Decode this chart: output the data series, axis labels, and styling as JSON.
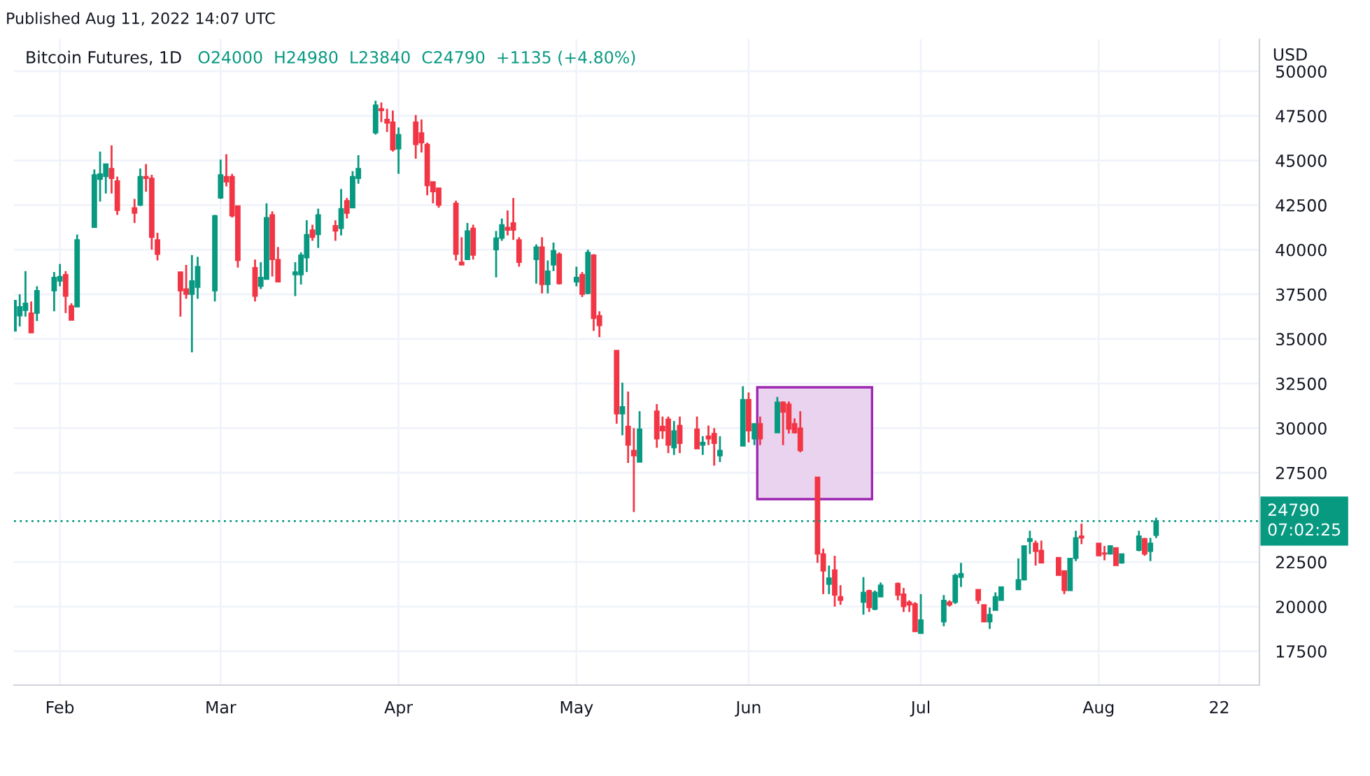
{
  "chart_data": {
    "type": "candlestick",
    "title": "Bitcoin Futures, 1D",
    "subtitle": "O24000  H24980  L23840  C24790  +1135 (+4.80%)",
    "ylabel": "USD",
    "annotations": [
      "07:02:25",
      "Published Aug 11, 2022 14:07 UTC"
    ],
    "x": [
      "2022-01-24",
      "2022-01-25",
      "2022-01-26",
      "2022-01-27",
      "2022-01-28",
      "2022-01-31",
      "2022-02-01",
      "2022-02-02",
      "2022-02-03",
      "2022-02-04",
      "2022-02-07",
      "2022-02-08",
      "2022-02-09",
      "2022-02-10",
      "2022-02-11",
      "2022-02-14",
      "2022-02-15",
      "2022-02-16",
      "2022-02-17",
      "2022-02-18",
      "2022-02-22",
      "2022-02-23",
      "2022-02-24",
      "2022-02-25",
      "2022-02-28",
      "2022-03-01",
      "2022-03-02",
      "2022-03-03",
      "2022-03-04",
      "2022-03-07",
      "2022-03-08",
      "2022-03-09",
      "2022-03-10",
      "2022-03-11",
      "2022-03-14",
      "2022-03-15",
      "2022-03-16",
      "2022-03-17",
      "2022-03-18",
      "2022-03-21",
      "2022-03-22",
      "2022-03-23",
      "2022-03-24",
      "2022-03-25",
      "2022-03-28",
      "2022-03-29",
      "2022-03-30",
      "2022-03-31",
      "2022-04-01",
      "2022-04-04",
      "2022-04-05",
      "2022-04-06",
      "2022-04-07",
      "2022-04-08",
      "2022-04-11",
      "2022-04-12",
      "2022-04-13",
      "2022-04-14",
      "2022-04-18",
      "2022-04-19",
      "2022-04-20",
      "2022-04-21",
      "2022-04-22",
      "2022-04-25",
      "2022-04-26",
      "2022-04-27",
      "2022-04-28",
      "2022-04-29",
      "2022-05-02",
      "2022-05-03",
      "2022-05-04",
      "2022-05-05",
      "2022-05-06",
      "2022-05-09",
      "2022-05-10",
      "2022-05-11",
      "2022-05-12",
      "2022-05-13",
      "2022-05-16",
      "2022-05-17",
      "2022-05-18",
      "2022-05-19",
      "2022-05-20",
      "2022-05-23",
      "2022-05-24",
      "2022-05-25",
      "2022-05-26",
      "2022-05-27",
      "2022-05-31",
      "2022-06-01",
      "2022-06-02",
      "2022-06-03",
      "2022-06-06",
      "2022-06-07",
      "2022-06-08",
      "2022-06-09",
      "2022-06-10",
      "2022-06-13",
      "2022-06-14",
      "2022-06-15",
      "2022-06-16",
      "2022-06-17",
      "2022-06-21",
      "2022-06-22",
      "2022-06-23",
      "2022-06-24",
      "2022-06-27",
      "2022-06-28",
      "2022-06-29",
      "2022-06-30",
      "2022-07-01",
      "2022-07-05",
      "2022-07-06",
      "2022-07-07",
      "2022-07-08",
      "2022-07-11",
      "2022-07-12",
      "2022-07-13",
      "2022-07-14",
      "2022-07-15",
      "2022-07-18",
      "2022-07-19",
      "2022-07-20",
      "2022-07-21",
      "2022-07-22",
      "2022-07-25",
      "2022-07-26",
      "2022-07-27",
      "2022-07-28",
      "2022-07-29",
      "2022-08-01",
      "2022-08-02",
      "2022-08-03",
      "2022-08-04",
      "2022-08-05",
      "2022-08-08",
      "2022-08-09",
      "2022-08-10",
      "2022-08-11"
    ],
    "ohlc": [
      [
        35450,
        37150,
        35450,
        37150
      ],
      [
        36300,
        37500,
        35700,
        36800
      ],
      [
        36600,
        38800,
        36250,
        37000
      ],
      [
        36450,
        37100,
        35350,
        35350
      ],
      [
        36450,
        37950,
        36000,
        37700
      ],
      [
        37700,
        38750,
        36550,
        38450
      ],
      [
        38250,
        39200,
        37950,
        38500
      ],
      [
        38600,
        38800,
        36450,
        37400
      ],
      [
        36850,
        37000,
        36050,
        36050
      ],
      [
        36800,
        40850,
        36800,
        40550
      ],
      [
        41250,
        44500,
        41250,
        44200
      ],
      [
        43950,
        45500,
        42700,
        44250
      ],
      [
        44100,
        44800,
        43150,
        44800
      ],
      [
        44550,
        45850,
        43150,
        44000
      ],
      [
        43850,
        44100,
        41950,
        42200
      ],
      [
        42350,
        42850,
        41500,
        42050
      ],
      [
        42500,
        44550,
        42450,
        44100
      ],
      [
        44100,
        44800,
        43250,
        44000
      ],
      [
        44000,
        44200,
        40000,
        40700
      ],
      [
        40550,
        40950,
        39400,
        39750
      ],
      [
        38750,
        38750,
        36250,
        37700
      ],
      [
        37800,
        39150,
        37250,
        37500
      ],
      [
        37500,
        39700,
        34250,
        38250
      ],
      [
        37900,
        39600,
        37250,
        39050
      ],
      [
        37700,
        41950,
        37100,
        41900
      ],
      [
        42900,
        45050,
        42850,
        44200
      ],
      [
        44100,
        45350,
        43550,
        43800
      ],
      [
        44100,
        44250,
        41800,
        41900
      ],
      [
        42450,
        42450,
        39000,
        39400
      ],
      [
        39000,
        39450,
        37100,
        37400
      ],
      [
        37950,
        39300,
        37800,
        38450
      ],
      [
        38350,
        42600,
        38350,
        41800
      ],
      [
        41950,
        42150,
        38500,
        39450
      ],
      [
        39450,
        40150,
        38200,
        38200
      ],
      [
        38600,
        39300,
        37400,
        38750
      ],
      [
        38600,
        39850,
        38050,
        39700
      ],
      [
        39550,
        41650,
        38750,
        40850
      ],
      [
        41100,
        41400,
        40500,
        40700
      ],
      [
        40850,
        42300,
        40100,
        41950
      ],
      [
        41350,
        41650,
        40500,
        41050
      ],
      [
        41200,
        43400,
        40800,
        42300
      ],
      [
        42750,
        42900,
        41750,
        42050
      ],
      [
        42350,
        44400,
        42350,
        44100
      ],
      [
        44000,
        45300,
        43700,
        44550
      ],
      [
        46550,
        48350,
        46450,
        48100
      ],
      [
        47900,
        48250,
        47150,
        47800
      ],
      [
        47300,
        47900,
        46600,
        47100
      ],
      [
        47150,
        47800,
        45500,
        45600
      ],
      [
        45650,
        46850,
        44250,
        46450
      ],
      [
        47150,
        47550,
        45100,
        45900
      ],
      [
        46550,
        47300,
        45450,
        46000
      ],
      [
        45900,
        46000,
        43050,
        43600
      ],
      [
        43800,
        43800,
        42600,
        43250
      ],
      [
        43450,
        43450,
        42350,
        42500
      ],
      [
        42600,
        42750,
        39400,
        39750
      ],
      [
        39300,
        40700,
        39150,
        39150
      ],
      [
        39450,
        41500,
        39450,
        41050
      ],
      [
        41200,
        41400,
        39450,
        39700
      ],
      [
        40000,
        41050,
        38450,
        40650
      ],
      [
        40650,
        41750,
        40500,
        41400
      ],
      [
        41250,
        42200,
        40800,
        41100
      ],
      [
        41500,
        42900,
        40550,
        41100
      ],
      [
        40550,
        40700,
        39050,
        39300
      ],
      [
        39450,
        40300,
        38100,
        40150
      ],
      [
        40150,
        40700,
        37550,
        38050
      ],
      [
        38050,
        39400,
        37550,
        38800
      ],
      [
        39150,
        40400,
        38800,
        39950
      ],
      [
        39750,
        39850,
        38050,
        38100
      ],
      [
        38200,
        39050,
        37950,
        38450
      ],
      [
        38600,
        38750,
        37350,
        37500
      ],
      [
        37550,
        40000,
        37500,
        39850
      ],
      [
        39700,
        39750,
        35450,
        36150
      ],
      [
        36300,
        36550,
        35100,
        35750
      ],
      [
        34350,
        34350,
        30250,
        30800
      ],
      [
        30800,
        32550,
        29600,
        31200
      ],
      [
        30100,
        32050,
        28050,
        29050
      ],
      [
        28750,
        30000,
        25300,
        28450
      ],
      [
        28100,
        30950,
        28100,
        29950
      ],
      [
        30950,
        31350,
        28900,
        29400
      ],
      [
        30100,
        30650,
        29400,
        29850
      ],
      [
        30500,
        30650,
        28600,
        29050
      ],
      [
        28900,
        30400,
        28500,
        29850
      ],
      [
        30150,
        30650,
        28600,
        29150
      ],
      [
        29950,
        30650,
        28850,
        28850
      ],
      [
        29050,
        29550,
        28500,
        29200
      ],
      [
        29550,
        30150,
        29050,
        29400
      ],
      [
        29700,
        30000,
        27900,
        29150
      ],
      [
        28450,
        29550,
        28100,
        28750
      ],
      [
        29000,
        32350,
        29000,
        31600
      ],
      [
        31600,
        32000,
        29200,
        29850
      ],
      [
        29400,
        30250,
        29050,
        30250
      ],
      [
        30250,
        30650,
        29050,
        29400
      ],
      [
        29750,
        31750,
        29750,
        31450
      ],
      [
        31450,
        31500,
        29050,
        30900
      ],
      [
        31350,
        31500,
        29700,
        29950
      ],
      [
        30250,
        30550,
        29700,
        29750
      ],
      [
        30000,
        30950,
        28650,
        28750
      ],
      [
        27250,
        27250,
        22450,
        22950
      ],
      [
        22950,
        23250,
        20700,
        22000
      ],
      [
        21250,
        22300,
        20700,
        21600
      ],
      [
        22050,
        22850,
        20000,
        20650
      ],
      [
        20550,
        21200,
        20100,
        20350
      ],
      [
        20250,
        21650,
        19550,
        20800
      ],
      [
        20900,
        20950,
        19700,
        19950
      ],
      [
        19850,
        20900,
        19800,
        20800
      ],
      [
        20550,
        21350,
        20550,
        21200
      ],
      [
        21300,
        21350,
        20350,
        20650
      ],
      [
        20700,
        21050,
        19700,
        20000
      ],
      [
        20250,
        20350,
        19700,
        20100
      ],
      [
        20150,
        20250,
        18600,
        18600
      ],
      [
        18500,
        20700,
        18500,
        19250
      ],
      [
        19150,
        20650,
        18900,
        20350
      ],
      [
        20250,
        20350,
        20000,
        20100
      ],
      [
        20250,
        21850,
        20150,
        21750
      ],
      [
        21650,
        22450,
        21100,
        21850
      ],
      [
        20950,
        20950,
        20150,
        20350
      ],
      [
        20100,
        20100,
        19150,
        19150
      ],
      [
        19150,
        19950,
        18750,
        19550
      ],
      [
        19800,
        20800,
        19800,
        20550
      ],
      [
        20350,
        21100,
        20350,
        21100
      ],
      [
        20950,
        22700,
        20950,
        21500
      ],
      [
        21500,
        23400,
        21500,
        23400
      ],
      [
        23650,
        24250,
        22950,
        23800
      ],
      [
        23550,
        23700,
        22300,
        23100
      ],
      [
        23150,
        23700,
        22450,
        22450
      ],
      [
        22750,
        22750,
        21750,
        21750
      ],
      [
        22000,
        22000,
        20700,
        20900
      ],
      [
        20900,
        22700,
        20900,
        22700
      ],
      [
        22700,
        24250,
        22550,
        23850
      ],
      [
        23950,
        24650,
        23500,
        23850
      ],
      [
        23550,
        23550,
        22850,
        22850
      ],
      [
        23000,
        23400,
        22600,
        22950
      ],
      [
        22950,
        23400,
        22950,
        23400
      ],
      [
        23300,
        23300,
        22300,
        22300
      ],
      [
        22450,
        22950,
        22400,
        22950
      ],
      [
        23150,
        24250,
        23100,
        23950
      ],
      [
        23800,
        23850,
        22850,
        22950
      ],
      [
        23100,
        23850,
        22550,
        23550
      ],
      [
        24000,
        24980,
        23840,
        24790
      ]
    ],
    "xlim": [
      "2022-01-24",
      "2022-08-29"
    ],
    "xticks": [
      {
        "value": "2022-02-01",
        "label": "Feb"
      },
      {
        "value": "2022-03-01",
        "label": "Mar"
      },
      {
        "value": "2022-04-01",
        "label": "Apr"
      },
      {
        "value": "2022-05-02",
        "label": "May"
      },
      {
        "value": "2022-06-01",
        "label": "Jun"
      },
      {
        "value": "2022-07-01",
        "label": "Jul"
      },
      {
        "value": "2022-08-01",
        "label": "Aug"
      },
      {
        "value": "2022-08-22",
        "label": "22"
      }
    ],
    "ylim": [
      15600,
      51800
    ],
    "yticks": [
      17500,
      20000,
      22500,
      27500,
      30000,
      32500,
      35000,
      37500,
      40000,
      42500,
      45000,
      47500,
      50000
    ],
    "grid": true,
    "ref_lines": [
      {
        "axis": "y",
        "value": 24790,
        "label": "24790",
        "color": "#089981",
        "line_style": "dotted"
      }
    ]
  }
}
